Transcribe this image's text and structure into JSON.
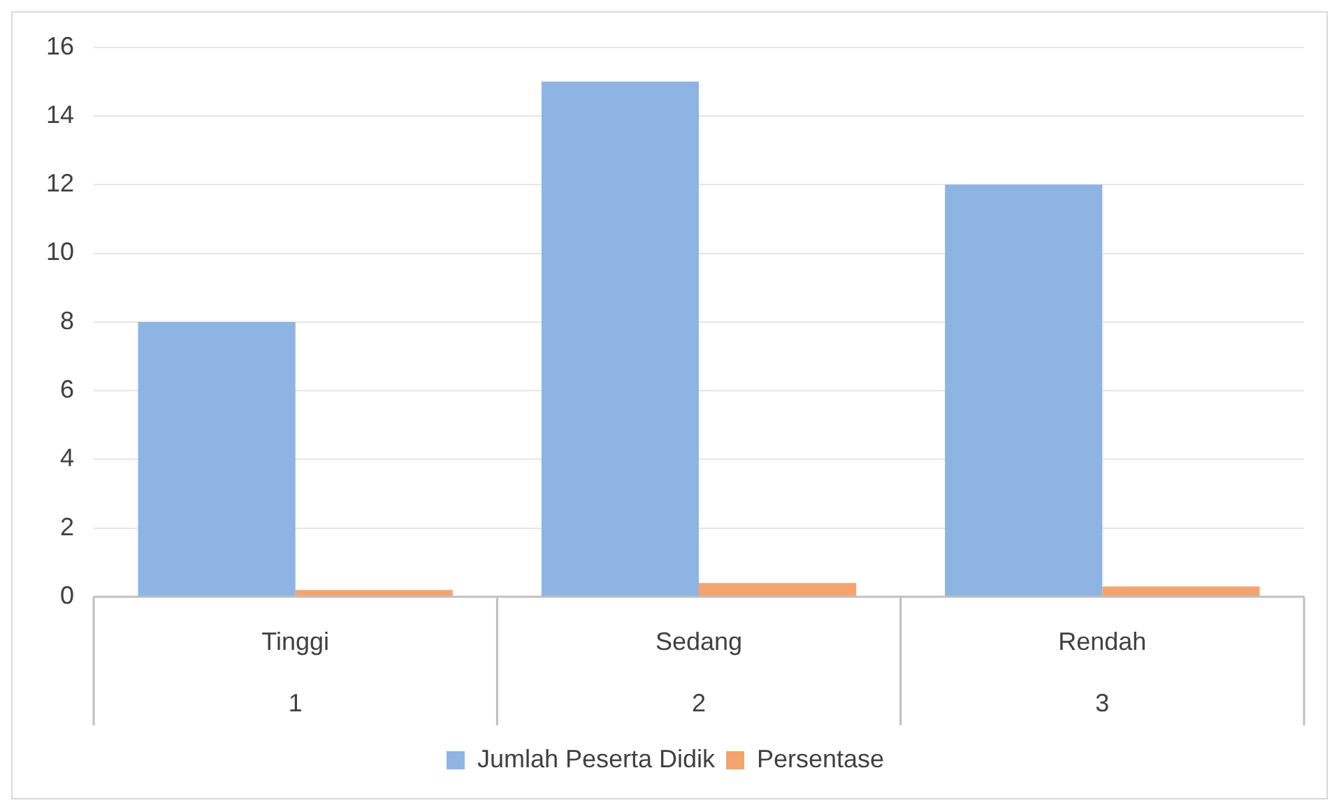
{
  "chart_data": {
    "type": "bar",
    "categories": [
      "Tinggi",
      "Sedang",
      "Rendah"
    ],
    "series": [
      {
        "name": "Jumlah Peserta Didik",
        "color": "#8db4e2",
        "values": [
          8,
          15,
          12
        ]
      },
      {
        "name": "Persentase",
        "color": "#f4a46e",
        "values": [
          0.2,
          0.4,
          0.3
        ]
      }
    ],
    "ylim": [
      0,
      16
    ],
    "yticks": [
      0,
      2,
      4,
      6,
      8,
      10,
      12,
      14,
      16
    ],
    "grid": "y",
    "legend": "bottom",
    "annotations": [
      "1",
      "2",
      "3"
    ]
  }
}
